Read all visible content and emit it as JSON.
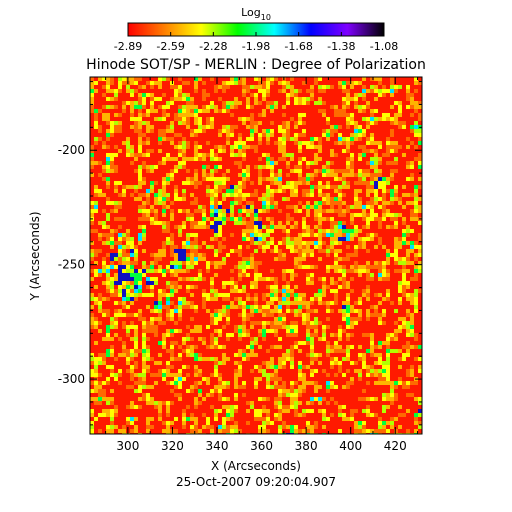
{
  "chart_data": {
    "type": "heatmap",
    "title": "Hinode SOT/SP - MERLIN : Degree of Polarization",
    "xlabel": "X (Arcseconds)",
    "ylabel": "Y (Arcseconds)",
    "footer": "25-Oct-2007 09:20:04.907",
    "xlim": [
      283,
      432
    ],
    "ylim": [
      -324,
      -168
    ],
    "x_ticks": [
      300,
      320,
      340,
      360,
      380,
      400,
      420
    ],
    "y_ticks": [
      -200,
      -250,
      -300
    ],
    "x_tick_labels": [
      "300",
      "320",
      "340",
      "360",
      "380",
      "400",
      "420"
    ],
    "y_tick_labels": [
      "-200",
      "-250",
      "-300"
    ],
    "colorbar": {
      "title_base": "Log",
      "title_sub": "10",
      "min": -2.89,
      "max": -1.08,
      "tick_labels": [
        "-2.89",
        "-2.59",
        "-2.28",
        "-1.98",
        "-1.68",
        "-1.38",
        "-1.08"
      ],
      "colors": [
        "#ff0000",
        "#ff7f00",
        "#ffff00",
        "#00ff00",
        "#00ffff",
        "#0000ff",
        "#7f00ff",
        "#000000"
      ]
    },
    "grid": false
  }
}
